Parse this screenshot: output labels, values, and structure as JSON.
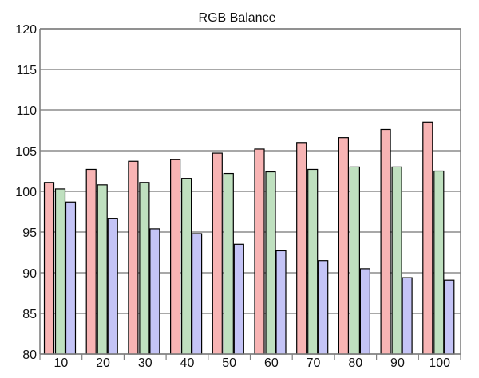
{
  "chart_data": {
    "type": "bar",
    "title": "RGB Balance",
    "xlabel": "",
    "ylabel": "",
    "categories": [
      "10",
      "20",
      "30",
      "40",
      "50",
      "60",
      "70",
      "80",
      "90",
      "100"
    ],
    "ylim": [
      80,
      120
    ],
    "yticks": [
      80,
      85,
      90,
      95,
      100,
      105,
      110,
      115,
      120
    ],
    "grid": true,
    "legend": "none",
    "series": [
      {
        "color": "#f8b4b4",
        "values": [
          101.1,
          102.7,
          103.7,
          103.9,
          104.7,
          105.2,
          106.0,
          106.6,
          107.6,
          108.5
        ]
      },
      {
        "color": "#bfe0bf",
        "values": [
          100.3,
          100.8,
          101.1,
          101.6,
          102.2,
          102.4,
          102.7,
          103.0,
          103.0,
          102.5
        ]
      },
      {
        "color": "#c4c4f6",
        "values": [
          98.7,
          96.7,
          95.4,
          94.8,
          93.5,
          92.7,
          91.5,
          90.5,
          89.4,
          89.1
        ]
      }
    ]
  }
}
